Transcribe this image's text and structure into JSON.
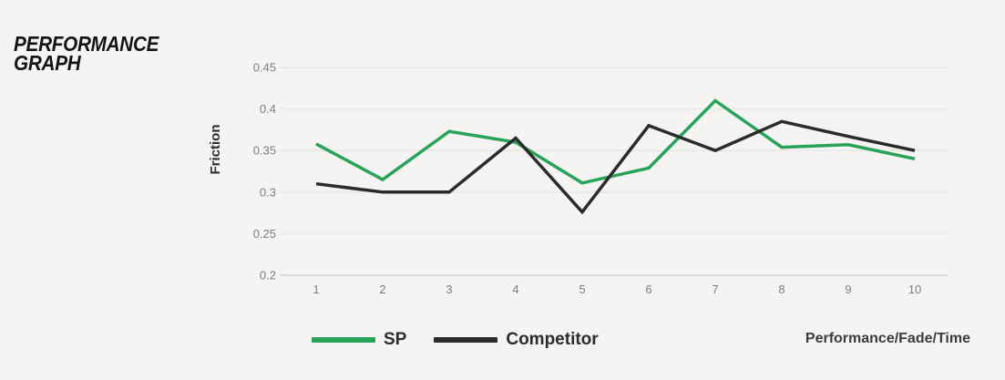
{
  "title": {
    "line1": "PERFORMANCE",
    "line2": "GRAPH"
  },
  "footer": {
    "caption": "Performance/Fade/Time"
  },
  "colors": {
    "background": "#f5f4f3",
    "gridline": "#e9e9e7",
    "axis_line": "#d9d9d7",
    "tick_text": "#7e7e7e",
    "sp_green": "#29a35a",
    "competitor_black": "#2b2b2b"
  },
  "chart_data": {
    "type": "line",
    "title": "",
    "xlabel": "",
    "ylabel": "Friction",
    "x": [
      1,
      2,
      3,
      4,
      5,
      6,
      7,
      8,
      9,
      10
    ],
    "series": [
      {
        "name": "SP",
        "color": "#29a35a",
        "values": [
          0.358,
          0.315,
          0.373,
          0.36,
          0.311,
          0.329,
          0.41,
          0.354,
          0.357,
          0.34
        ]
      },
      {
        "name": "Competitor",
        "color": "#2b2b2b",
        "values": [
          0.31,
          0.3,
          0.3,
          0.365,
          0.276,
          0.38,
          0.35,
          0.385,
          0.367,
          0.35
        ]
      }
    ],
    "ylim": [
      0.2,
      0.45
    ],
    "yticks": [
      0.2,
      0.25,
      0.3,
      0.35,
      0.4,
      0.45
    ],
    "grid": true,
    "grid_axis": "horizontal",
    "legend_position": "bottom-left"
  }
}
